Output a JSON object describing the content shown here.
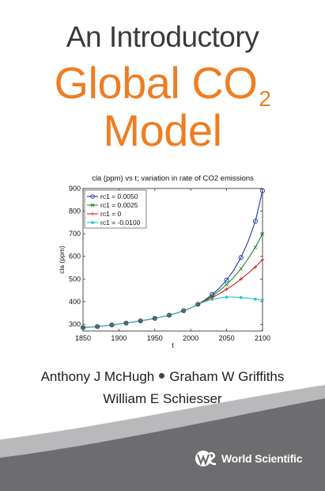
{
  "cover": {
    "pre_title": "An Introductory",
    "title_main": "Global CO",
    "title_subscript": "2",
    "title_line2": "Model",
    "authors_line1": [
      "Anthony J McHugh",
      "Graham W Griffiths"
    ],
    "authors_line2": "William E Schiesser",
    "publisher": "World Scientific",
    "colors": {
      "title": "#ef7d22",
      "band_dark": "#6d6d6f",
      "band_light": "#b9b9bb"
    },
    "publisher_icon": "world-scientific-logo-icon"
  },
  "chart_data": {
    "type": "line",
    "title": "cla (ppm) vs t; variation in rate of CO2 emissions",
    "xlabel": "t",
    "ylabel": "cla (ppm)",
    "xlim": [
      1850,
      2100
    ],
    "ylim": [
      270,
      900
    ],
    "xticks": [
      1850,
      1900,
      1950,
      2000,
      2050,
      2100
    ],
    "yticks": [
      300,
      400,
      500,
      600,
      700,
      800,
      900
    ],
    "legend_position": "top-left",
    "x": [
      1850,
      1860,
      1870,
      1880,
      1890,
      1900,
      1910,
      1920,
      1930,
      1940,
      1950,
      1960,
      1970,
      1980,
      1990,
      2000,
      2010,
      2020,
      2030,
      2040,
      2050,
      2060,
      2070,
      2080,
      2090,
      2100
    ],
    "series": [
      {
        "name": "rc1 = 0.0050",
        "color": "#1f3b9a",
        "marker": "circle",
        "values": [
          285,
          287,
          290,
          293,
          297,
          301,
          305,
          310,
          315,
          320,
          326,
          333,
          340,
          349,
          360,
          372,
          388,
          408,
          432,
          460,
          495,
          540,
          595,
          665,
          755,
          890
        ]
      },
      {
        "name": "rc1 = 0.0025",
        "color": "#1c8a2a",
        "marker": "x",
        "values": [
          285,
          287,
          290,
          293,
          297,
          301,
          305,
          310,
          315,
          320,
          326,
          333,
          340,
          349,
          360,
          372,
          388,
          405,
          425,
          448,
          475,
          508,
          545,
          590,
          640,
          700
        ]
      },
      {
        "name": "rc1 = 0",
        "color": "#d21f1f",
        "marker": "plus",
        "values": [
          285,
          287,
          290,
          293,
          297,
          301,
          305,
          310,
          315,
          320,
          326,
          333,
          340,
          349,
          360,
          372,
          388,
          403,
          418,
          435,
          455,
          475,
          500,
          525,
          553,
          585
        ]
      },
      {
        "name": "rc1 = -0.0100",
        "color": "#26c4c4",
        "marker": "dot",
        "values": [
          285,
          287,
          290,
          293,
          297,
          301,
          305,
          310,
          315,
          320,
          326,
          333,
          340,
          349,
          360,
          372,
          388,
          400,
          410,
          416,
          420,
          420,
          418,
          415,
          411,
          407
        ]
      }
    ]
  }
}
